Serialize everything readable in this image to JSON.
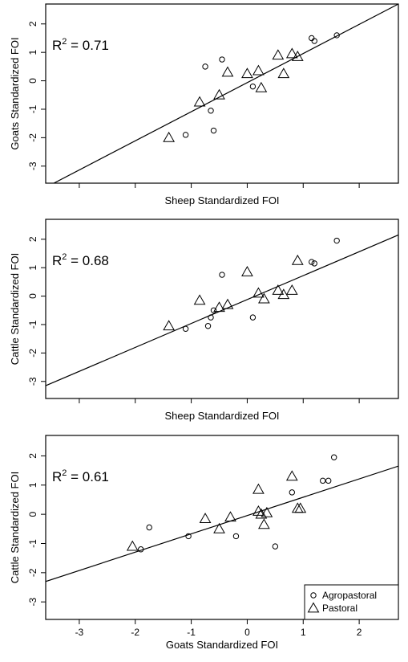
{
  "chart_data": [
    {
      "type": "scatter",
      "title": "",
      "xlabel": "Sheep Standardized FOI",
      "ylabel": "Goats Standardized FOI",
      "xlim": [
        -3.6,
        2.7
      ],
      "ylim": [
        -3.6,
        2.7
      ],
      "x_ticks": [
        -3,
        -2,
        -1,
        0,
        1,
        2
      ],
      "y_ticks": [
        -3,
        -2,
        -1,
        0,
        1,
        2
      ],
      "show_x_tick_labels": false,
      "annotation": {
        "prefix": "R",
        "superscript": "2",
        "text": " = 0.71"
      },
      "fit_line": {
        "x": [
          -3.6,
          2.7
        ],
        "y": [
          -3.75,
          2.7
        ]
      },
      "series": [
        {
          "name": "Agropastoral",
          "marker": "circle",
          "x": [
            -1.1,
            -0.75,
            -0.65,
            -0.6,
            -0.45,
            0.1,
            1.15,
            1.2,
            1.6
          ],
          "y": [
            -1.9,
            0.5,
            -1.05,
            -1.75,
            0.75,
            -0.2,
            1.5,
            1.4,
            1.6
          ]
        },
        {
          "name": "Pastoral",
          "marker": "triangle",
          "x": [
            -1.4,
            -0.85,
            -0.5,
            -0.35,
            0.0,
            0.2,
            0.25,
            0.55,
            0.65,
            0.8,
            0.9
          ],
          "y": [
            -2.0,
            -0.75,
            -0.5,
            0.3,
            0.25,
            0.35,
            -0.25,
            0.9,
            0.25,
            0.95,
            0.85
          ]
        }
      ]
    },
    {
      "type": "scatter",
      "title": "",
      "xlabel": "Sheep Standardized FOI",
      "ylabel": "Cattle Standardized FOI",
      "xlim": [
        -3.6,
        2.7
      ],
      "ylim": [
        -3.6,
        2.7
      ],
      "x_ticks": [
        -3,
        -2,
        -1,
        0,
        1,
        2
      ],
      "y_ticks": [
        -3,
        -2,
        -1,
        0,
        1,
        2
      ],
      "show_x_tick_labels": false,
      "annotation": {
        "prefix": "R",
        "superscript": "2",
        "text": " = 0.68"
      },
      "fit_line": {
        "x": [
          -3.6,
          2.7
        ],
        "y": [
          -3.15,
          2.15
        ]
      },
      "series": [
        {
          "name": "Agropastoral",
          "marker": "circle",
          "x": [
            -1.1,
            -0.7,
            -0.65,
            -0.6,
            -0.45,
            0.1,
            1.15,
            1.2,
            1.6
          ],
          "y": [
            -1.15,
            -1.05,
            -0.75,
            -0.5,
            0.75,
            -0.75,
            1.2,
            1.15,
            1.95
          ]
        },
        {
          "name": "Pastoral",
          "marker": "triangle",
          "x": [
            -1.4,
            -0.85,
            -0.5,
            -0.35,
            0.0,
            0.2,
            0.3,
            0.55,
            0.65,
            0.8,
            0.9
          ],
          "y": [
            -1.05,
            -0.15,
            -0.4,
            -0.3,
            0.85,
            0.1,
            -0.1,
            0.2,
            0.05,
            0.2,
            1.25
          ]
        }
      ]
    },
    {
      "type": "scatter",
      "title": "",
      "xlabel": "Goats Standardized FOI",
      "ylabel": "Cattle Standardized FOI",
      "xlim": [
        -3.6,
        2.7
      ],
      "ylim": [
        -3.6,
        2.7
      ],
      "x_ticks": [
        -3,
        -2,
        -1,
        0,
        1,
        2
      ],
      "y_ticks": [
        -3,
        -2,
        -1,
        0,
        1,
        2
      ],
      "show_x_tick_labels": true,
      "annotation": {
        "prefix": "R",
        "superscript": "2",
        "text": " = 0.61"
      },
      "fit_line": {
        "x": [
          -3.6,
          2.7
        ],
        "y": [
          -2.3,
          1.65
        ]
      },
      "series": [
        {
          "name": "Agropastoral",
          "marker": "circle",
          "x": [
            -1.9,
            -1.75,
            -1.05,
            -0.2,
            0.5,
            0.8,
            1.35,
            1.45,
            1.55
          ],
          "y": [
            -1.2,
            -0.45,
            -0.75,
            -0.75,
            -1.1,
            0.75,
            1.15,
            1.15,
            1.95
          ]
        },
        {
          "name": "Pastoral",
          "marker": "triangle",
          "x": [
            -2.05,
            -0.75,
            -0.5,
            -0.3,
            0.2,
            0.25,
            0.35,
            0.8,
            0.9,
            0.95,
            0.2,
            0.3
          ],
          "y": [
            -1.1,
            -0.15,
            -0.5,
            -0.1,
            0.85,
            0.0,
            0.05,
            1.3,
            0.2,
            0.2,
            0.1,
            -0.35
          ]
        }
      ],
      "legend": {
        "position": "bottom-right",
        "entries": [
          {
            "label": "Agropastoral",
            "marker": "circle"
          },
          {
            "label": "Pastoral",
            "marker": "triangle"
          }
        ]
      }
    }
  ]
}
